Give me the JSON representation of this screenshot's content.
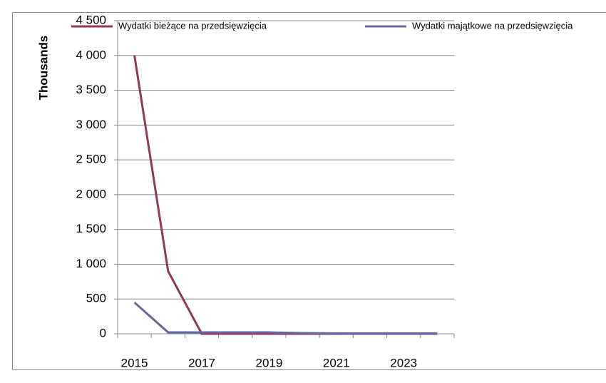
{
  "chart_data": {
    "type": "line",
    "y_label": "Thousands",
    "categories": [
      "2015",
      null,
      "2017",
      null,
      "2019",
      null,
      "2021",
      null,
      "2023",
      null
    ],
    "series": [
      {
        "name": "Wydatki bieżące na przedsięwzięcia",
        "color": "#953558",
        "values": [
          4000,
          900,
          0,
          0,
          0,
          0,
          0,
          0,
          0,
          0
        ]
      },
      {
        "name": "Wydatki majątkowe na przedsięwzięcia",
        "color": "#6666a0",
        "values": [
          450,
          20,
          20,
          20,
          20,
          10,
          5,
          5,
          5,
          5
        ]
      }
    ],
    "ylim": [
      0,
      4500
    ],
    "yticks": [
      0,
      500,
      {
        "value": 1000,
        "label": "1 000"
      },
      {
        "value": 1500,
        "label": "1 500"
      },
      {
        "value": 2000,
        "label": "2 000"
      },
      {
        "value": 2500,
        "label": "2 500"
      },
      {
        "value": 3000,
        "label": "3 000"
      },
      {
        "value": 3500,
        "label": "3 500"
      },
      {
        "value": 4000,
        "label": "4 000"
      },
      {
        "value": 4500,
        "label": "4 500"
      }
    ],
    "grid": true,
    "legend": "top"
  }
}
